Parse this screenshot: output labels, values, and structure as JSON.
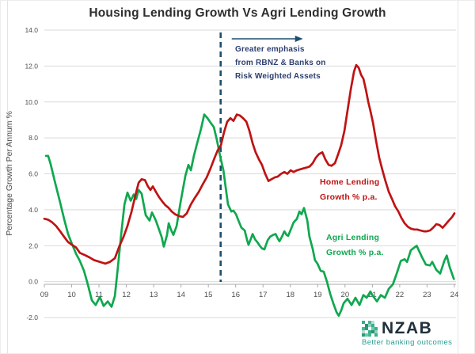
{
  "title": "Housing Lending Growth Vs Agri Lending Growth",
  "colors": {
    "home_line": "#bf1313",
    "agri_line": "#0fa84f",
    "dashed_marker": "#1d4f6d",
    "annotation_text": "#2c3f6e",
    "gridline": "#d9d9d9",
    "axis_line": "#ababab",
    "tick_text": "#4d4d4d",
    "title_text": "#2e2e2e",
    "logo_teal": "#2a9d8f",
    "logo_dark": "#20303c"
  },
  "chart_data": {
    "type": "line",
    "title": "Housing Lending Growth Vs Agri Lending Growth",
    "xlabel": "",
    "ylabel": "Percentage Growth Per Annum %",
    "ylim": [
      -2.0,
      14.0
    ],
    "xlim": [
      9,
      24
    ],
    "ytick_step": 2.0,
    "yticks": [
      "14.0",
      "12.0",
      "10.0",
      "8.0",
      "6.0",
      "4.0",
      "2.0",
      "0.0",
      "-2.0"
    ],
    "xticks": [
      "09",
      "10",
      "11",
      "12",
      "13",
      "14",
      "15",
      "16",
      "17",
      "18",
      "19",
      "20",
      "21",
      "22",
      "23",
      "24"
    ],
    "grid": true,
    "legend_position": "inline-labels",
    "annotation": {
      "lines": [
        "Greater emphasis",
        "from RBNZ & Banks on",
        "Risk Weighted Assets"
      ],
      "x_year": 15.45,
      "has_arrow": true
    },
    "series": [
      {
        "name": "Home Lending Growth % p.a.",
        "label_lines": [
          "Home Lending",
          "Growth % p.a."
        ],
        "color": "#bf1313",
        "points": [
          [
            9.0,
            3.5
          ],
          [
            9.14,
            3.45
          ],
          [
            9.29,
            3.3
          ],
          [
            9.43,
            3.1
          ],
          [
            9.58,
            2.8
          ],
          [
            9.72,
            2.5
          ],
          [
            9.87,
            2.2
          ],
          [
            10.01,
            2.05
          ],
          [
            10.16,
            1.9
          ],
          [
            10.3,
            1.6
          ],
          [
            10.45,
            1.5
          ],
          [
            10.65,
            1.35
          ],
          [
            10.82,
            1.2
          ],
          [
            11.03,
            1.1
          ],
          [
            11.23,
            1.0
          ],
          [
            11.4,
            1.1
          ],
          [
            11.58,
            1.3
          ],
          [
            11.75,
            2.0
          ],
          [
            11.9,
            2.5
          ],
          [
            12.04,
            3.1
          ],
          [
            12.19,
            3.9
          ],
          [
            12.33,
            4.8
          ],
          [
            12.45,
            5.5
          ],
          [
            12.56,
            5.7
          ],
          [
            12.68,
            5.65
          ],
          [
            12.79,
            5.3
          ],
          [
            12.88,
            5.1
          ],
          [
            12.97,
            5.3
          ],
          [
            13.08,
            5.0
          ],
          [
            13.2,
            4.7
          ],
          [
            13.32,
            4.45
          ],
          [
            13.43,
            4.25
          ],
          [
            13.55,
            4.1
          ],
          [
            13.66,
            3.9
          ],
          [
            13.78,
            3.75
          ],
          [
            13.92,
            3.65
          ],
          [
            14.07,
            3.6
          ],
          [
            14.21,
            3.8
          ],
          [
            14.36,
            4.3
          ],
          [
            14.5,
            4.65
          ],
          [
            14.65,
            5.0
          ],
          [
            14.79,
            5.4
          ],
          [
            14.94,
            5.8
          ],
          [
            15.08,
            6.3
          ],
          [
            15.23,
            6.9
          ],
          [
            15.34,
            7.3
          ],
          [
            15.46,
            7.6
          ],
          [
            15.57,
            8.3
          ],
          [
            15.69,
            8.9
          ],
          [
            15.81,
            9.1
          ],
          [
            15.92,
            8.95
          ],
          [
            16.04,
            9.3
          ],
          [
            16.15,
            9.25
          ],
          [
            16.27,
            9.1
          ],
          [
            16.39,
            8.9
          ],
          [
            16.5,
            8.4
          ],
          [
            16.62,
            7.7
          ],
          [
            16.73,
            7.2
          ],
          [
            16.85,
            6.8
          ],
          [
            16.96,
            6.5
          ],
          [
            17.08,
            6.0
          ],
          [
            17.2,
            5.6
          ],
          [
            17.31,
            5.7
          ],
          [
            17.43,
            5.8
          ],
          [
            17.54,
            5.85
          ],
          [
            17.66,
            6.0
          ],
          [
            17.78,
            6.1
          ],
          [
            17.89,
            6.0
          ],
          [
            18.01,
            6.2
          ],
          [
            18.12,
            6.1
          ],
          [
            18.24,
            6.2
          ],
          [
            18.36,
            6.25
          ],
          [
            18.47,
            6.3
          ],
          [
            18.59,
            6.35
          ],
          [
            18.7,
            6.4
          ],
          [
            18.82,
            6.6
          ],
          [
            18.93,
            6.9
          ],
          [
            19.05,
            7.1
          ],
          [
            19.17,
            7.2
          ],
          [
            19.28,
            6.8
          ],
          [
            19.4,
            6.5
          ],
          [
            19.51,
            6.45
          ],
          [
            19.63,
            6.6
          ],
          [
            19.75,
            7.1
          ],
          [
            19.86,
            7.6
          ],
          [
            19.98,
            8.4
          ],
          [
            20.09,
            9.5
          ],
          [
            20.21,
            10.7
          ],
          [
            20.33,
            11.7
          ],
          [
            20.41,
            12.05
          ],
          [
            20.5,
            11.9
          ],
          [
            20.59,
            11.5
          ],
          [
            20.67,
            11.3
          ],
          [
            20.76,
            10.7
          ],
          [
            20.85,
            10.0
          ],
          [
            20.93,
            9.5
          ],
          [
            21.02,
            8.85
          ],
          [
            21.14,
            7.8
          ],
          [
            21.25,
            6.9
          ],
          [
            21.37,
            6.2
          ],
          [
            21.48,
            5.6
          ],
          [
            21.6,
            5.0
          ],
          [
            21.72,
            4.6
          ],
          [
            21.83,
            4.2
          ],
          [
            21.95,
            3.9
          ],
          [
            22.06,
            3.55
          ],
          [
            22.18,
            3.25
          ],
          [
            22.3,
            3.05
          ],
          [
            22.41,
            2.95
          ],
          [
            22.53,
            2.9
          ],
          [
            22.64,
            2.9
          ],
          [
            22.76,
            2.85
          ],
          [
            22.88,
            2.8
          ],
          [
            22.99,
            2.8
          ],
          [
            23.11,
            2.85
          ],
          [
            23.22,
            3.0
          ],
          [
            23.34,
            3.2
          ],
          [
            23.46,
            3.15
          ],
          [
            23.57,
            3.0
          ],
          [
            23.69,
            3.2
          ],
          [
            23.8,
            3.4
          ],
          [
            23.92,
            3.6
          ],
          [
            24.0,
            3.8
          ]
        ]
      },
      {
        "name": "Agri Lending Growth % p.a.",
        "label_lines": [
          "Agri Lending",
          "Growth % p.a."
        ],
        "color": "#0fa84f",
        "points": [
          [
            9.06,
            7.0
          ],
          [
            9.14,
            7.0
          ],
          [
            9.23,
            6.55
          ],
          [
            9.38,
            5.6
          ],
          [
            9.58,
            4.4
          ],
          [
            9.72,
            3.5
          ],
          [
            9.87,
            2.65
          ],
          [
            10.01,
            2.1
          ],
          [
            10.16,
            1.55
          ],
          [
            10.3,
            1.15
          ],
          [
            10.45,
            0.6
          ],
          [
            10.59,
            -0.15
          ],
          [
            10.74,
            -1.05
          ],
          [
            10.88,
            -1.3
          ],
          [
            11.03,
            -0.85
          ],
          [
            11.17,
            -1.35
          ],
          [
            11.32,
            -1.1
          ],
          [
            11.46,
            -1.4
          ],
          [
            11.58,
            -0.8
          ],
          [
            11.69,
            0.8
          ],
          [
            11.81,
            2.6
          ],
          [
            11.93,
            4.3
          ],
          [
            12.04,
            4.95
          ],
          [
            12.16,
            4.5
          ],
          [
            12.27,
            4.85
          ],
          [
            12.36,
            4.6
          ],
          [
            12.45,
            5.1
          ],
          [
            12.56,
            4.9
          ],
          [
            12.71,
            3.7
          ],
          [
            12.85,
            3.4
          ],
          [
            12.94,
            3.85
          ],
          [
            13.08,
            3.4
          ],
          [
            13.29,
            2.5
          ],
          [
            13.37,
            1.95
          ],
          [
            13.49,
            2.6
          ],
          [
            13.55,
            3.25
          ],
          [
            13.63,
            2.9
          ],
          [
            13.72,
            2.6
          ],
          [
            13.84,
            3.1
          ],
          [
            13.98,
            4.4
          ],
          [
            14.16,
            5.9
          ],
          [
            14.27,
            6.5
          ],
          [
            14.36,
            6.2
          ],
          [
            14.47,
            7.0
          ],
          [
            14.59,
            7.7
          ],
          [
            14.73,
            8.5
          ],
          [
            14.85,
            9.3
          ],
          [
            14.97,
            9.1
          ],
          [
            15.08,
            8.85
          ],
          [
            15.2,
            8.6
          ],
          [
            15.31,
            7.9
          ],
          [
            15.43,
            7.0
          ],
          [
            15.55,
            6.2
          ],
          [
            15.63,
            5.3
          ],
          [
            15.72,
            4.3
          ],
          [
            15.84,
            3.9
          ],
          [
            15.92,
            3.95
          ],
          [
            16.01,
            3.75
          ],
          [
            16.1,
            3.4
          ],
          [
            16.21,
            3.0
          ],
          [
            16.33,
            2.85
          ],
          [
            16.42,
            2.3
          ],
          [
            16.47,
            2.05
          ],
          [
            16.56,
            2.4
          ],
          [
            16.62,
            2.65
          ],
          [
            16.71,
            2.35
          ],
          [
            16.79,
            2.2
          ],
          [
            16.88,
            2.0
          ],
          [
            16.96,
            1.85
          ],
          [
            17.05,
            1.8
          ],
          [
            17.17,
            2.3
          ],
          [
            17.26,
            2.5
          ],
          [
            17.37,
            2.6
          ],
          [
            17.46,
            2.65
          ],
          [
            17.54,
            2.4
          ],
          [
            17.6,
            2.25
          ],
          [
            17.69,
            2.5
          ],
          [
            17.78,
            2.8
          ],
          [
            17.86,
            2.6
          ],
          [
            17.92,
            2.55
          ],
          [
            18.04,
            3.0
          ],
          [
            18.12,
            3.3
          ],
          [
            18.24,
            3.5
          ],
          [
            18.33,
            3.9
          ],
          [
            18.41,
            3.75
          ],
          [
            18.5,
            4.1
          ],
          [
            18.62,
            3.4
          ],
          [
            18.7,
            2.5
          ],
          [
            18.82,
            1.8
          ],
          [
            18.9,
            1.2
          ],
          [
            18.99,
            1.0
          ],
          [
            19.11,
            0.6
          ],
          [
            19.22,
            0.55
          ],
          [
            19.34,
            0.0
          ],
          [
            19.46,
            -0.7
          ],
          [
            19.57,
            -1.2
          ],
          [
            19.69,
            -1.7
          ],
          [
            19.77,
            -1.9
          ],
          [
            19.86,
            -1.6
          ],
          [
            19.95,
            -1.2
          ],
          [
            20.09,
            -0.95
          ],
          [
            20.24,
            -1.3
          ],
          [
            20.38,
            -0.9
          ],
          [
            20.53,
            -1.3
          ],
          [
            20.67,
            -0.75
          ],
          [
            20.79,
            -0.9
          ],
          [
            20.93,
            -0.55
          ],
          [
            21.02,
            -0.8
          ],
          [
            21.17,
            -1.1
          ],
          [
            21.31,
            -0.75
          ],
          [
            21.46,
            -0.9
          ],
          [
            21.6,
            -0.4
          ],
          [
            21.75,
            -0.15
          ],
          [
            21.89,
            0.45
          ],
          [
            22.04,
            1.15
          ],
          [
            22.18,
            1.25
          ],
          [
            22.27,
            1.1
          ],
          [
            22.41,
            1.75
          ],
          [
            22.62,
            2.0
          ],
          [
            22.82,
            1.35
          ],
          [
            22.96,
            0.95
          ],
          [
            23.11,
            0.9
          ],
          [
            23.19,
            1.1
          ],
          [
            23.34,
            0.65
          ],
          [
            23.48,
            0.45
          ],
          [
            23.63,
            1.15
          ],
          [
            23.72,
            1.45
          ],
          [
            23.83,
            0.8
          ],
          [
            23.98,
            0.15
          ]
        ]
      }
    ]
  },
  "logo": {
    "name": "NZAB",
    "tagline": "Better banking outcomes",
    "icon_colors": [
      "#35b08a",
      "#ffffff",
      "#47b793",
      "#b7e0d4",
      "#ffffff",
      "#ffffff",
      "#2f8f70",
      "#8fd3bd",
      "#35b08a",
      "#ffffff",
      "#47b793",
      "#2a9d78",
      "#ffffff",
      "#6cc7ab",
      "#35b08a",
      "#b7e0d4",
      "#ffffff",
      "#35b08a",
      "#2f8f70",
      "#8fd3bd",
      "#2a9d78",
      "#6cc7ab",
      "#47b793",
      "#ffffff",
      "#35b08a"
    ]
  }
}
